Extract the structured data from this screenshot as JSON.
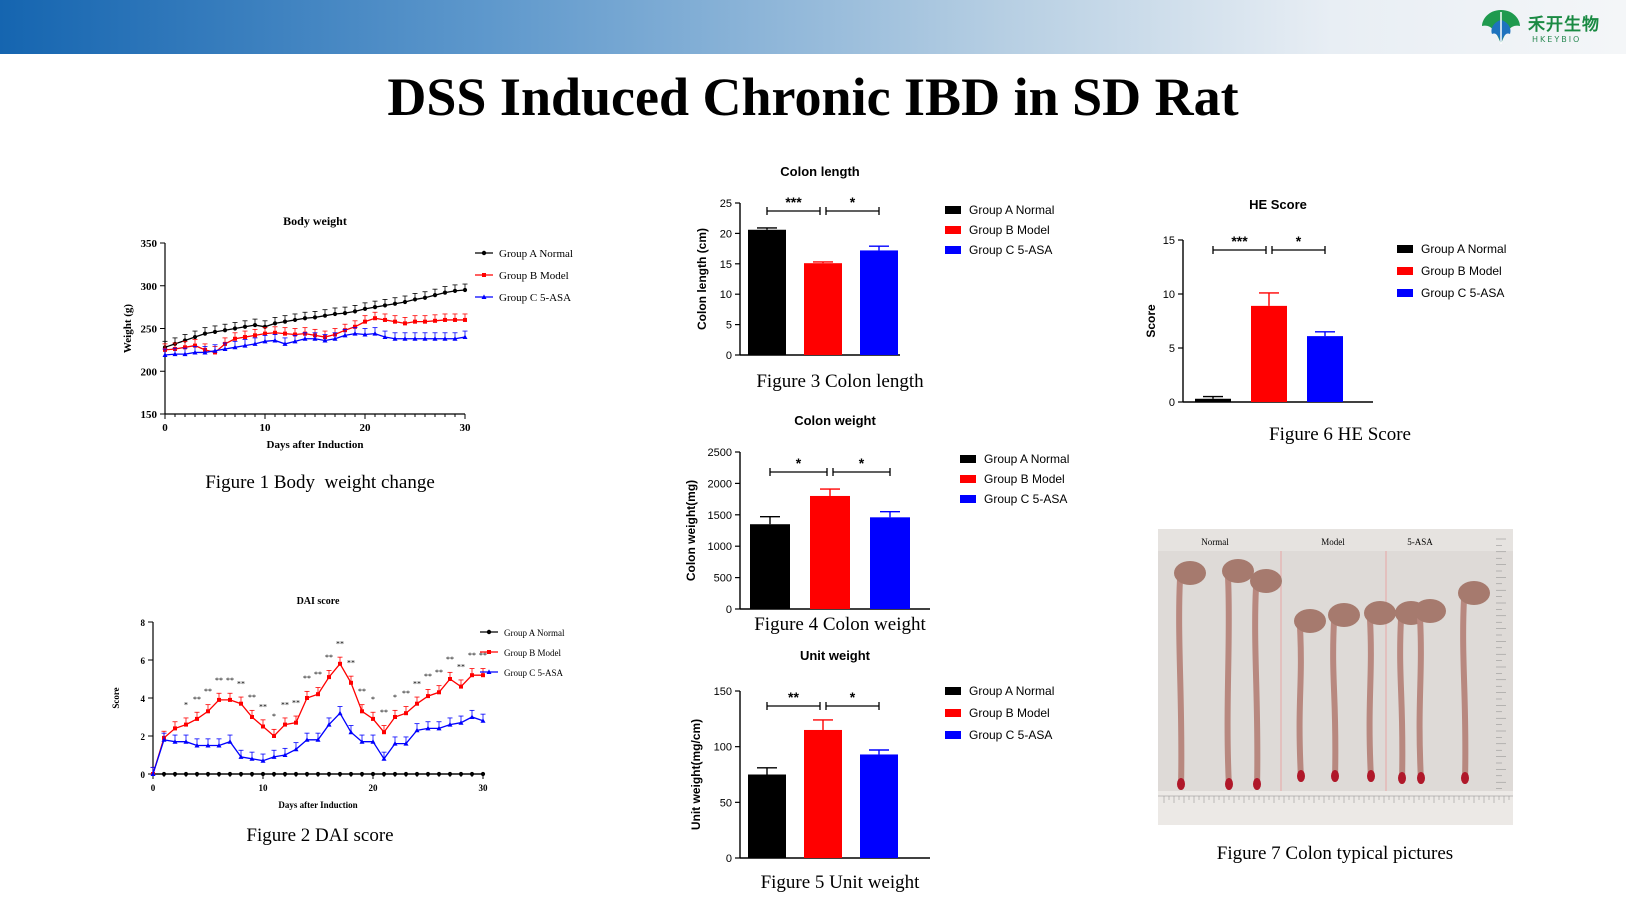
{
  "title": "DSS Induced Chronic IBD in SD Rat",
  "logo": {
    "name": "禾开生物",
    "subtitle": "HKEYBIO"
  },
  "colors": {
    "normal": "#000000",
    "model": "#ff0000",
    "asa": "#0000ff",
    "brand": "#1a8a43"
  },
  "legend": [
    "Group A Normal",
    "Group B Model",
    "Group C 5-ASA"
  ],
  "captions": {
    "fig1": "Figure 1 Body  weight change",
    "fig2": "Figure 2 DAI score",
    "fig3": "Figure 3 Colon length",
    "fig4": "Figure 4 Colon weight",
    "fig5": "Figure 5 Unit weight",
    "fig6": "Figure 6 HE Score",
    "fig7": "Figure 7 Colon typical pictures"
  },
  "photo_labels": [
    "Normal",
    "Model",
    "5-ASA"
  ],
  "chart_data": [
    {
      "id": "fig1",
      "type": "line",
      "title": "Body weight",
      "xlabel": "Days after Induction",
      "ylabel": "Weight (g)",
      "xlim": [
        0,
        30
      ],
      "ylim": [
        150,
        350
      ],
      "xticks": [
        0,
        10,
        20,
        30
      ],
      "yticks": [
        150,
        200,
        250,
        300,
        350
      ],
      "x": [
        0,
        1,
        2,
        3,
        4,
        5,
        6,
        7,
        8,
        9,
        10,
        11,
        12,
        13,
        14,
        15,
        16,
        17,
        18,
        19,
        20,
        21,
        22,
        23,
        24,
        25,
        26,
        27,
        28,
        29,
        30
      ],
      "series": [
        {
          "name": "Group A Normal",
          "values": [
            228,
            232,
            236,
            240,
            244,
            246,
            248,
            250,
            252,
            254,
            252,
            256,
            258,
            260,
            262,
            263,
            265,
            267,
            268,
            270,
            273,
            275,
            277,
            279,
            281,
            284,
            286,
            289,
            292,
            294,
            295
          ]
        },
        {
          "name": "Group B Model",
          "values": [
            225,
            226,
            228,
            230,
            225,
            222,
            232,
            238,
            240,
            242,
            244,
            245,
            244,
            243,
            244,
            242,
            240,
            243,
            248,
            252,
            258,
            262,
            260,
            258,
            256,
            258,
            258,
            259,
            260,
            260,
            260
          ]
        },
        {
          "name": "Group C 5-ASA",
          "values": [
            219,
            220,
            220,
            222,
            222,
            224,
            226,
            228,
            230,
            232,
            235,
            236,
            232,
            235,
            238,
            238,
            236,
            238,
            242,
            244,
            243,
            244,
            240,
            238,
            238,
            238,
            238,
            238,
            238,
            238,
            240
          ]
        }
      ]
    },
    {
      "id": "fig2",
      "type": "line",
      "title": "DAI score",
      "xlabel": "Days after Induction",
      "ylabel": "Score",
      "xlim": [
        0,
        30
      ],
      "ylim": [
        0,
        8
      ],
      "xticks": [
        0,
        10,
        20,
        30
      ],
      "yticks": [
        0,
        2,
        4,
        6,
        8
      ],
      "x": [
        0,
        1,
        2,
        3,
        4,
        5,
        6,
        7,
        8,
        9,
        10,
        11,
        12,
        13,
        14,
        15,
        16,
        17,
        18,
        19,
        20,
        21,
        22,
        23,
        24,
        25,
        26,
        27,
        28,
        29,
        30
      ],
      "series": [
        {
          "name": "Group A Normal",
          "values": [
            0,
            0,
            0,
            0,
            0,
            0,
            0,
            0,
            0,
            0,
            0,
            0,
            0,
            0,
            0,
            0,
            0,
            0,
            0,
            0,
            0,
            0,
            0,
            0,
            0,
            0,
            0,
            0,
            0,
            0,
            0
          ]
        },
        {
          "name": "Group B Model",
          "values": [
            0,
            1.9,
            2.4,
            2.6,
            2.9,
            3.3,
            3.9,
            3.9,
            3.7,
            3.0,
            2.5,
            2.0,
            2.6,
            2.7,
            4.0,
            4.2,
            5.1,
            5.8,
            4.8,
            3.3,
            2.9,
            2.2,
            3.0,
            3.2,
            3.7,
            4.1,
            4.3,
            5.0,
            4.6,
            5.2,
            5.2
          ]
        },
        {
          "name": "Group C 5-ASA",
          "values": [
            0,
            1.8,
            1.7,
            1.7,
            1.5,
            1.5,
            1.5,
            1.7,
            0.9,
            0.8,
            0.7,
            0.9,
            1.0,
            1.3,
            1.8,
            1.8,
            2.6,
            3.2,
            2.2,
            1.7,
            1.7,
            0.8,
            1.6,
            1.6,
            2.3,
            2.4,
            2.4,
            2.6,
            2.7,
            3.0,
            2.8
          ]
        }
      ],
      "annotations": [
        "*",
        "**"
      ]
    },
    {
      "id": "fig3",
      "type": "bar",
      "title": "Colon length",
      "ylabel": "Colon length (cm)",
      "categories": [
        "Group A Normal",
        "Group B Model",
        "Group C 5-ASA"
      ],
      "values": [
        20.6,
        15.1,
        17.2
      ],
      "errors": [
        0.3,
        0.2,
        0.7
      ],
      "ylim": [
        0,
        25
      ],
      "yticks": [
        0,
        5,
        10,
        15,
        20,
        25
      ],
      "significance": [
        "***",
        "*"
      ]
    },
    {
      "id": "fig4",
      "type": "bar",
      "title": "Colon  weight",
      "ylabel": "Colon  weight(mg)",
      "categories": [
        "Group A Normal",
        "Group B Model",
        "Group C 5-ASA"
      ],
      "values": [
        1350,
        1800,
        1460
      ],
      "errors": [
        120,
        110,
        90
      ],
      "ylim": [
        0,
        2500
      ],
      "yticks": [
        0,
        500,
        1000,
        1500,
        2000,
        2500
      ],
      "significance": [
        "*",
        "*"
      ]
    },
    {
      "id": "fig5",
      "type": "bar",
      "title": "Unit weight",
      "ylabel": "Unit weight(mg/cm)",
      "categories": [
        "Group A Normal",
        "Group B Model",
        "Group C 5-ASA"
      ],
      "values": [
        75,
        115,
        93
      ],
      "errors": [
        6,
        9,
        4
      ],
      "ylim": [
        0,
        150
      ],
      "yticks": [
        0,
        50,
        100,
        150
      ],
      "significance": [
        "**",
        "*"
      ]
    },
    {
      "id": "fig6",
      "type": "bar",
      "title": "HE Score",
      "ylabel": "Score",
      "categories": [
        "Group A Normal",
        "Group B Model",
        "Group C 5-ASA"
      ],
      "values": [
        0.3,
        8.9,
        6.1
      ],
      "errors": [
        0.2,
        1.2,
        0.4
      ],
      "ylim": [
        0,
        15
      ],
      "yticks": [
        0,
        5,
        10,
        15
      ],
      "significance": [
        "***",
        "*"
      ]
    }
  ]
}
